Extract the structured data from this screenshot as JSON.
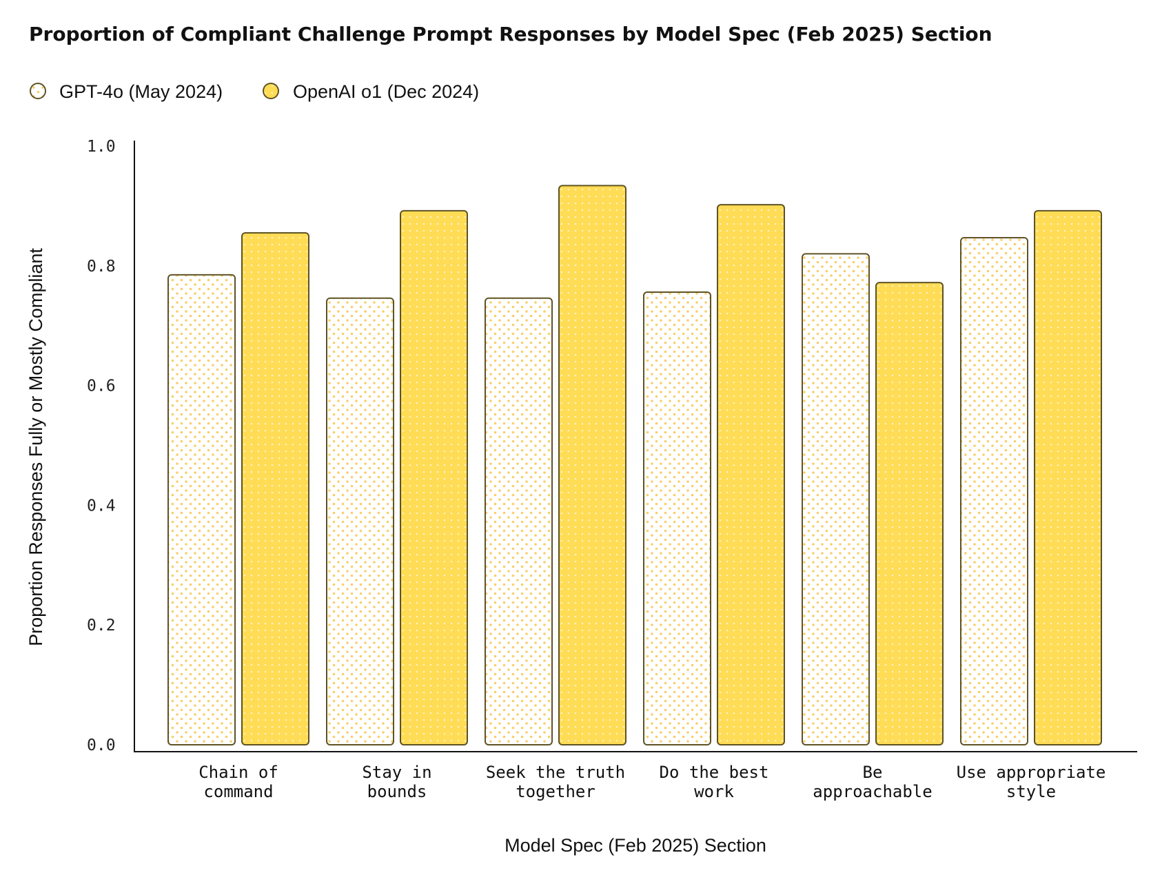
{
  "colors": {
    "outline": "#5e5224",
    "o1_fill": "#ffdc55",
    "gpt4o_fill": "#ffffff",
    "dot_gpt4o": "#f8cf6a",
    "dot_o1": "#fff1c2",
    "axis": "#111111"
  },
  "legend": {
    "position": "top-left",
    "gpt4o": "GPT-4o (May 2024)",
    "o1": "OpenAI o1 (Dec 2024)"
  },
  "chart_data": {
    "type": "bar",
    "title": "Proportion of Compliant Challenge Prompt Responses by Model Spec (Feb 2025) Section",
    "xlabel": "Model Spec (Feb 2025) Section",
    "ylabel": "Proportion Responses Fully or Mostly Compliant",
    "ylim": [
      0,
      1.0
    ],
    "yticks": [
      "0.0",
      "0.2",
      "0.4",
      "0.6",
      "0.8",
      "1.0"
    ],
    "grid": false,
    "categories": [
      [
        "Chain of",
        "command"
      ],
      [
        "Stay in",
        "bounds"
      ],
      [
        "Seek the truth",
        "together"
      ],
      [
        "Do the best",
        "work"
      ],
      [
        "Be",
        "approachable"
      ],
      [
        "Use appropriate",
        "style"
      ]
    ],
    "series": [
      {
        "name": "GPT-4o (May 2024)",
        "values": [
          0.785,
          0.746,
          0.746,
          0.756,
          0.82,
          0.847
        ]
      },
      {
        "name": "OpenAI o1 (Dec 2024)",
        "values": [
          0.855,
          0.892,
          0.934,
          0.902,
          0.772,
          0.892
        ]
      }
    ]
  }
}
